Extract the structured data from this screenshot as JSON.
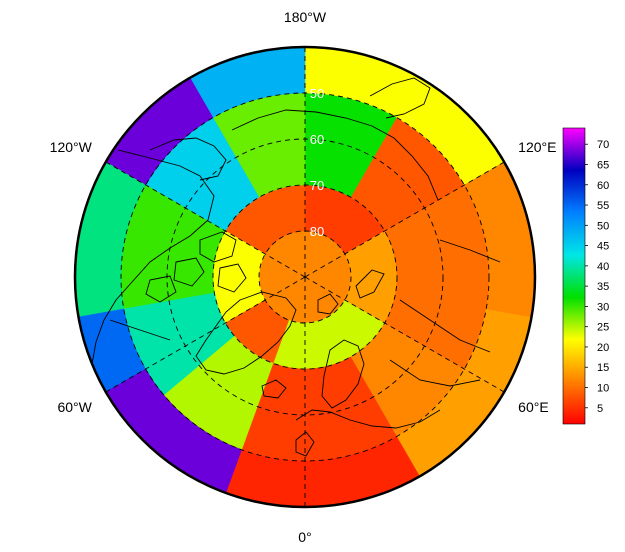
{
  "chart_data": {
    "type": "heatmap",
    "projection": "north-polar-stereographic",
    "longitude_labels": [
      {
        "lon": 180,
        "text": "180°W"
      },
      {
        "lon": 120,
        "text": "120°E"
      },
      {
        "lon": 60,
        "text": "60°E"
      },
      {
        "lon": 0,
        "text": "0°"
      },
      {
        "lon": -60,
        "text": "60°W"
      },
      {
        "lon": -120,
        "text": "120°W"
      }
    ],
    "latitude_labels": [
      {
        "lat": 50,
        "text": "50"
      },
      {
        "lat": 60,
        "text": "60"
      },
      {
        "lat": 70,
        "text": "70"
      },
      {
        "lat": 80,
        "text": "80"
      }
    ],
    "colorbar": {
      "ticks": [
        5,
        10,
        15,
        20,
        25,
        30,
        35,
        40,
        45,
        50,
        55,
        60,
        65,
        70
      ],
      "range": [
        1,
        74
      ],
      "colors": [
        "#ff0000",
        "#ff8000",
        "#ffff00",
        "#00e000",
        "#00e6e6",
        "#0080ff",
        "#0000c0",
        "#ff00ff"
      ]
    },
    "grid": true,
    "regions": [
      {
        "lat_min": 80,
        "lat_max": 90,
        "lon_min": -180,
        "lon_max": 180,
        "value": 12
      },
      {
        "lat_min": 70,
        "lat_max": 80,
        "lon_min": 120,
        "lon_max": 180,
        "value": 6
      },
      {
        "lat_min": 70,
        "lat_max": 80,
        "lon_min": -180,
        "lon_max": -120,
        "value": 8
      },
      {
        "lat_min": 70,
        "lat_max": 80,
        "lon_min": -120,
        "lon_max": -60,
        "value": 22
      },
      {
        "lat_min": 70,
        "lat_max": 80,
        "lon_min": -60,
        "lon_max": -20,
        "value": 8
      },
      {
        "lat_min": 70,
        "lat_max": 80,
        "lon_min": -20,
        "lon_max": 60,
        "value": 24
      },
      {
        "lat_min": 70,
        "lat_max": 80,
        "lon_min": 60,
        "lon_max": 120,
        "value": 14
      },
      {
        "lat_min": 50,
        "lat_max": 70,
        "lon_min": 150,
        "lon_max": 180,
        "value": 32
      },
      {
        "lat_min": 50,
        "lat_max": 70,
        "lon_min": -180,
        "lon_max": -150,
        "value": 28
      },
      {
        "lat_min": 50,
        "lat_max": 70,
        "lon_min": -150,
        "lon_max": -120,
        "value": 45
      },
      {
        "lat_min": 50,
        "lat_max": 70,
        "lon_min": -120,
        "lon_max": -80,
        "value": 30
      },
      {
        "lat_min": 50,
        "lat_max": 70,
        "lon_min": -80,
        "lon_max": -50,
        "value": 40
      },
      {
        "lat_min": 50,
        "lat_max": 70,
        "lon_min": -50,
        "lon_max": -20,
        "value": 25
      },
      {
        "lat_min": 50,
        "lat_max": 70,
        "lon_min": -20,
        "lon_max": 30,
        "value": 6
      },
      {
        "lat_min": 50,
        "lat_max": 70,
        "lon_min": 30,
        "lon_max": 60,
        "value": 12
      },
      {
        "lat_min": 50,
        "lat_max": 70,
        "lon_min": 60,
        "lon_max": 120,
        "value": 10
      },
      {
        "lat_min": 50,
        "lat_max": 70,
        "lon_min": 120,
        "lon_max": 150,
        "value": 8
      },
      {
        "lat_min": 40,
        "lat_max": 50,
        "lon_min": 120,
        "lon_max": 180,
        "value": 22
      },
      {
        "lat_min": 40,
        "lat_max": 50,
        "lon_min": -180,
        "lon_max": -150,
        "value": 48
      },
      {
        "lat_min": 40,
        "lat_max": 50,
        "lon_min": -150,
        "lon_max": -120,
        "value": 68
      },
      {
        "lat_min": 40,
        "lat_max": 50,
        "lon_min": -120,
        "lon_max": -80,
        "value": 38
      },
      {
        "lat_min": 40,
        "lat_max": 50,
        "lon_min": -80,
        "lon_max": -60,
        "value": 55
      },
      {
        "lat_min": 40,
        "lat_max": 50,
        "lon_min": -60,
        "lon_max": -20,
        "value": 68
      },
      {
        "lat_min": 40,
        "lat_max": 50,
        "lon_min": -20,
        "lon_max": 30,
        "value": 4
      },
      {
        "lat_min": 40,
        "lat_max": 50,
        "lon_min": 30,
        "lon_max": 80,
        "value": 14
      },
      {
        "lat_min": 40,
        "lat_max": 50,
        "lon_min": 80,
        "lon_max": 120,
        "value": 12
      }
    ]
  }
}
